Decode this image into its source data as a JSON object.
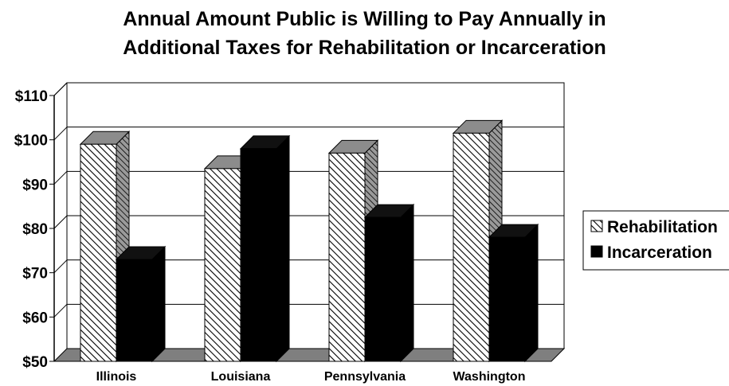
{
  "chart_data": {
    "type": "bar",
    "title_line1": "Annual Amount Public is Willing to Pay Annually in",
    "title_line2": "Additional Taxes for Rehabilitation or Incarceration",
    "categories": [
      "Illinois",
      "Louisiana",
      "Pennsylvania",
      "Washington"
    ],
    "series": [
      {
        "name": "Rehabilitation",
        "values": [
          99,
          93.5,
          97,
          101.5
        ],
        "fill": "hatched"
      },
      {
        "name": "Incarceration",
        "values": [
          73,
          98,
          82.5,
          78
        ],
        "fill": "solid",
        "color": "#000000"
      }
    ],
    "y_ticks": [
      "$50",
      "$60",
      "$70",
      "$80",
      "$90",
      "$100",
      "$110"
    ],
    "ylim": [
      50,
      110
    ],
    "grid": true,
    "style": "3d",
    "legend_position": "right"
  }
}
